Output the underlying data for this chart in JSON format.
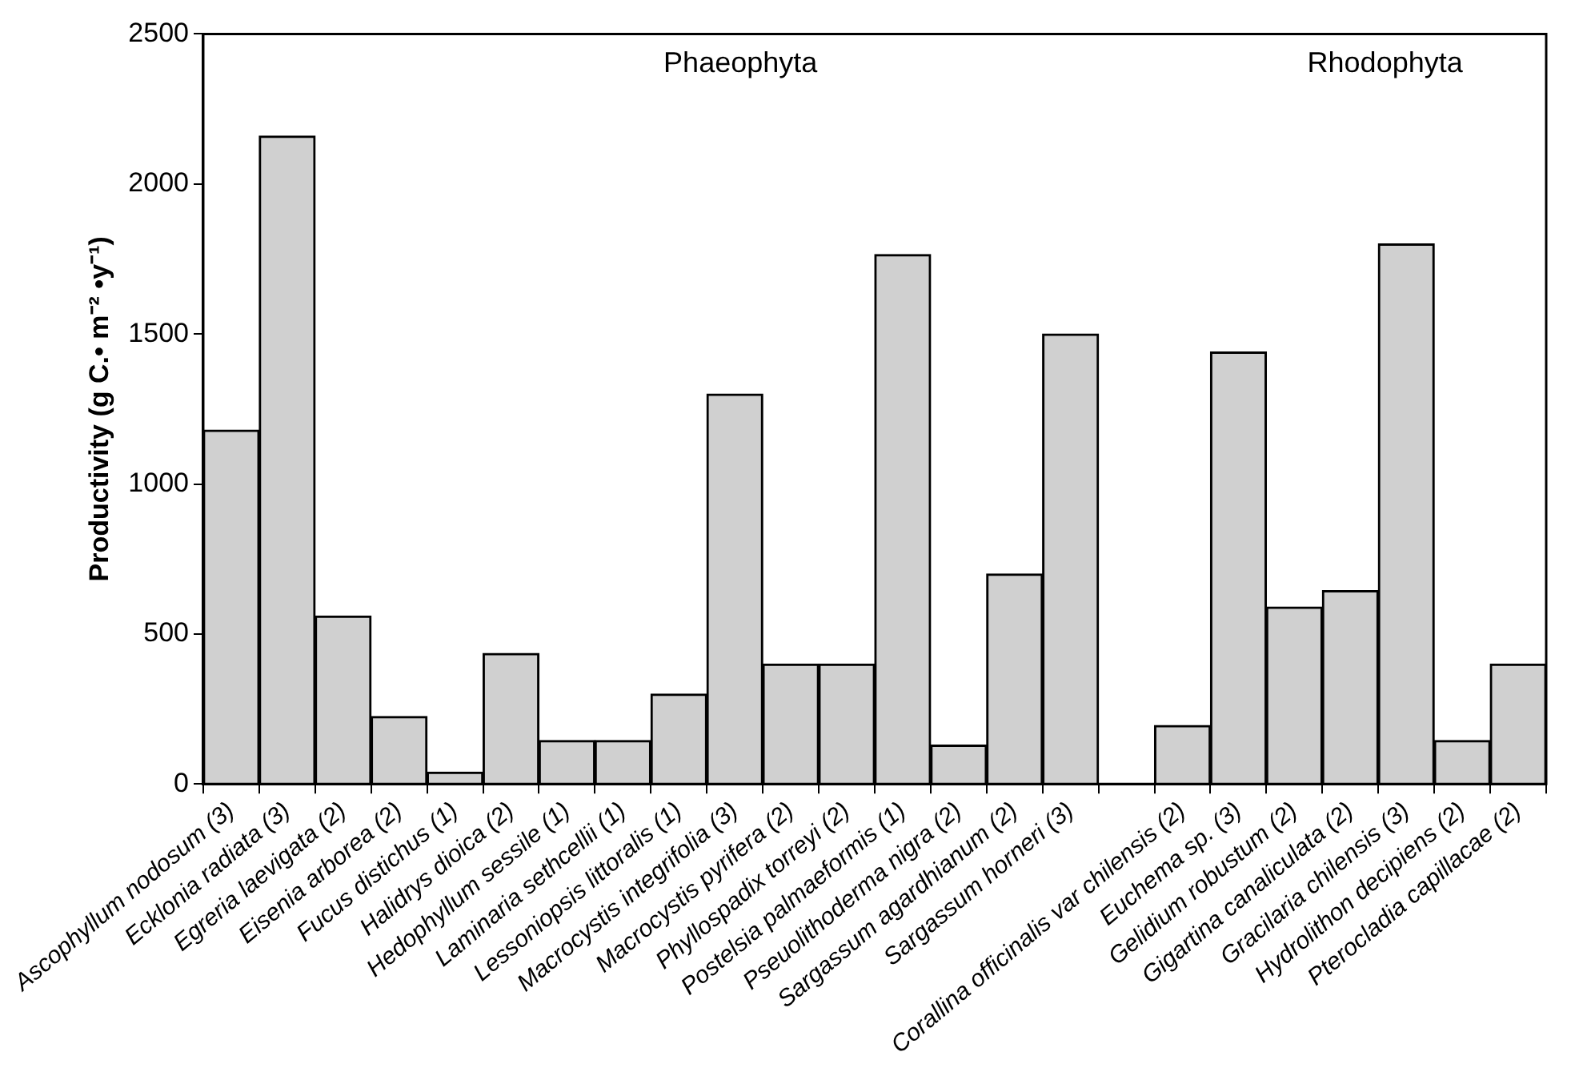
{
  "chart_data": {
    "type": "bar",
    "ylabel": "Productivity (g C.• m⁻² •y⁻¹)",
    "categories": [
      "Ascophyllum nodosum (3)",
      "Ecklonia radiata (3)",
      "Egreria laevigata (2)",
      "Eisenia arborea (2)",
      "Fucus distichus (1)",
      "Halidrys dioica (2)",
      "Hedophyllum sessile (1)",
      "Laminaria sethcellii (1)",
      "Lessoniopsis littoralis (1)",
      "Macrocystis integrifolia (3)",
      "Macrocystis pyrifera (2)",
      "Phyllospadix torreyi (2)",
      "Postelsia palmaeformis (1)",
      "Pseuolithoderma nigra (2)",
      "Sargassum agardhianum (2)",
      "Sargassum horneri (3)",
      null,
      "Corallina officinalis var chilensis (2)",
      "Euchema sp. (3)",
      "Gelidium robustum (2)",
      "Gigartina canaliculata (2)",
      "Gracilaria chilensis (3)",
      "Hydrolithon decipiens (2)",
      "Pterocladia capillacae (2)"
    ],
    "values": [
      1180,
      2160,
      560,
      225,
      40,
      435,
      145,
      145,
      300,
      1300,
      400,
      400,
      1765,
      130,
      700,
      1500,
      null,
      195,
      1440,
      590,
      645,
      1800,
      145,
      400
    ],
    "color": "#d0d0d0",
    "ylim": [
      0,
      2500
    ],
    "yticks": [
      0,
      500,
      1000,
      1500,
      2000,
      2500
    ],
    "grid": false,
    "legend": false,
    "annotations": [
      "Phaeophyta",
      "Rhodophyta"
    ]
  }
}
